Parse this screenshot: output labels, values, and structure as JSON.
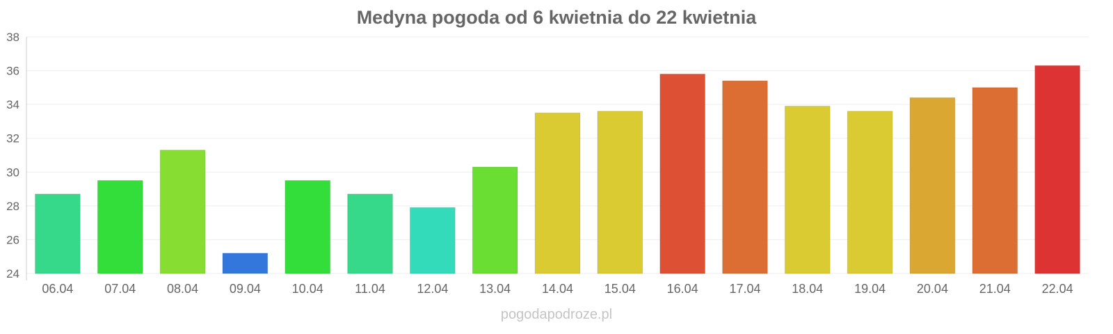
{
  "chart_data": {
    "type": "bar",
    "title": "Medyna pogoda od 6 kwietnia do 22 kwietnia",
    "xlabel": "",
    "ylabel": "",
    "ylim": [
      24,
      38
    ],
    "yticks": [
      24,
      26,
      28,
      30,
      32,
      34,
      36,
      38
    ],
    "grid": true,
    "categories": [
      "06.04",
      "07.04",
      "08.04",
      "09.04",
      "10.04",
      "11.04",
      "12.04",
      "13.04",
      "14.04",
      "15.04",
      "16.04",
      "17.04",
      "18.04",
      "19.04",
      "20.04",
      "21.04",
      "22.04"
    ],
    "values": [
      28.7,
      29.5,
      31.3,
      25.2,
      29.5,
      28.7,
      27.9,
      30.3,
      33.5,
      33.6,
      35.8,
      35.4,
      33.9,
      33.6,
      34.4,
      35.0,
      36.3
    ],
    "colors": [
      "#36d98a",
      "#33dd3a",
      "#88dd33",
      "#3377dd",
      "#33dd3a",
      "#36d98a",
      "#33dbbb",
      "#6ade33",
      "#dbcb33",
      "#dbcb33",
      "#dd5033",
      "#dd6e33",
      "#dbcb33",
      "#dbcb33",
      "#dba733",
      "#dd6e33",
      "#dd3333"
    ]
  },
  "footer": "pogodapodroze.pl"
}
